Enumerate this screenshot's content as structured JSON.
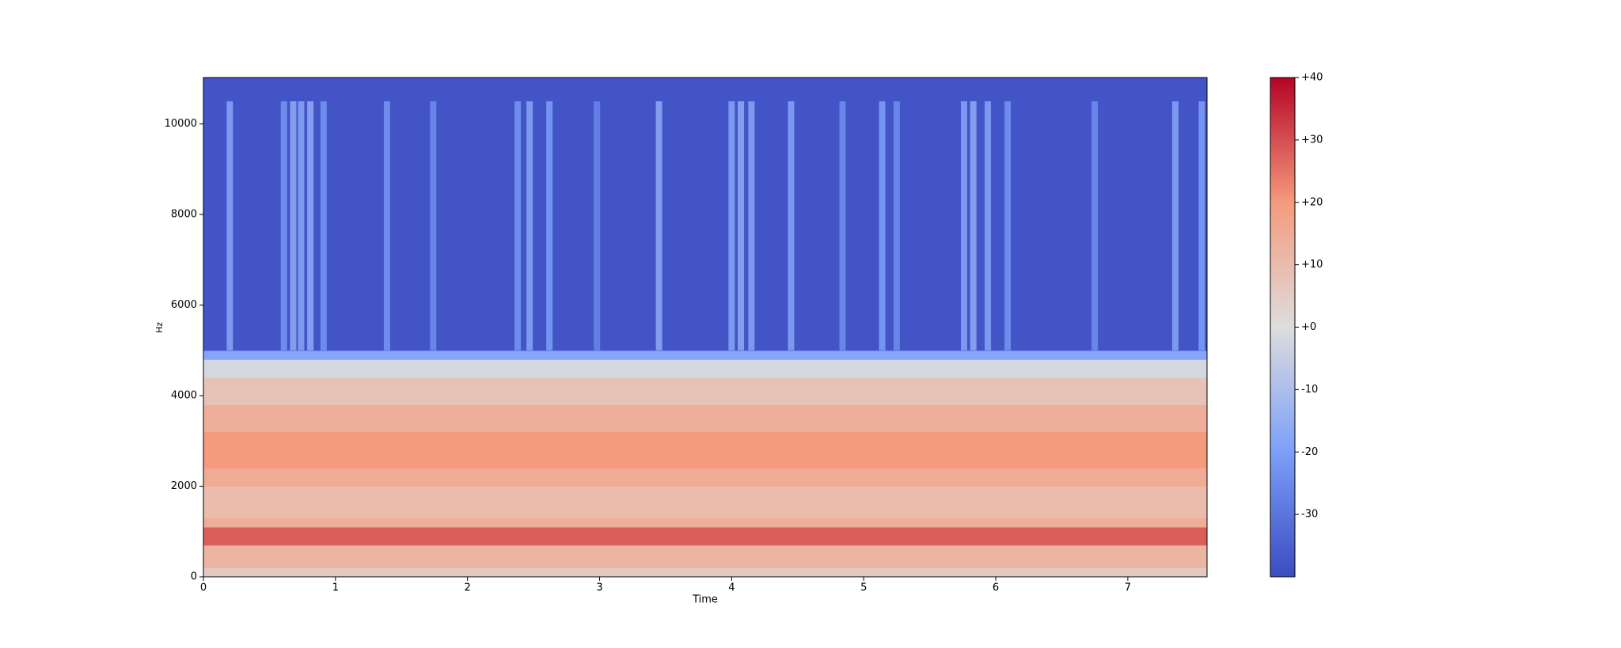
{
  "chart_data": {
    "type": "spectrogram",
    "xlabel": "Time",
    "ylabel": "Hz",
    "xlim": [
      0,
      7.6
    ],
    "xticks": [
      0,
      1,
      2,
      3,
      4,
      5,
      6,
      7
    ],
    "ylim": [
      0,
      11025
    ],
    "yticks": [
      0,
      2000,
      4000,
      6000,
      8000,
      10000
    ],
    "colormap": "coolwarm",
    "clim": [
      -40,
      40
    ],
    "cticks": [
      {
        "value": 40,
        "label": "+40"
      },
      {
        "value": 30,
        "label": "+30"
      },
      {
        "value": 20,
        "label": "+20"
      },
      {
        "value": 10,
        "label": "+10"
      },
      {
        "value": 0,
        "label": "+0"
      },
      -10,
      -20,
      -30
    ],
    "bands": {
      "edges": [
        0,
        200,
        700,
        1100,
        1300,
        2000,
        2400,
        3200,
        3800,
        4400,
        4800,
        5000,
        11025
      ],
      "values": [
        6,
        12,
        28,
        14,
        10,
        15,
        20,
        14,
        8,
        -2,
        -18,
        -38
      ]
    },
    "streaks": {
      "band": [
        5000,
        10500
      ],
      "x": [
        0.2,
        0.61,
        0.68,
        0.74,
        0.81,
        0.91,
        1.39,
        1.74,
        2.38,
        2.47,
        2.62,
        2.98,
        3.45,
        4.0,
        4.07,
        4.15,
        4.45,
        4.84,
        5.14,
        5.25,
        5.76,
        5.83,
        5.94,
        6.09,
        6.75,
        7.36,
        7.56
      ],
      "values": [
        -18,
        -22,
        -16,
        -18,
        -16,
        -22,
        -22,
        -24,
        -22,
        -18,
        -20,
        -26,
        -16,
        -18,
        -16,
        -18,
        -18,
        -24,
        -20,
        -24,
        -18,
        -16,
        -18,
        -22,
        -24,
        -18,
        -20
      ]
    }
  }
}
